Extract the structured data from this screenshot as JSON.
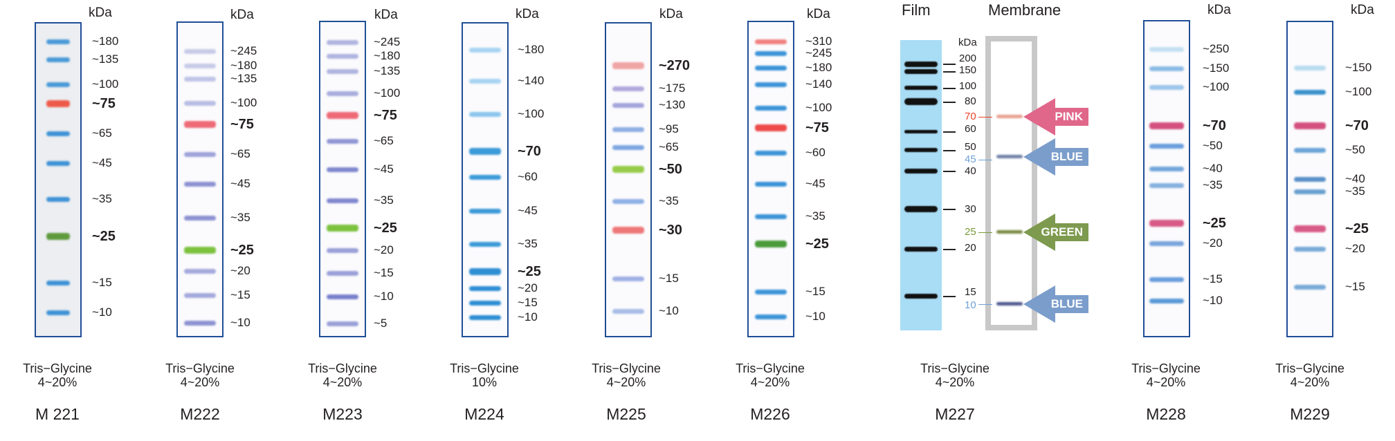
{
  "unit": "kDa",
  "ladders": [
    {
      "name": "M 221",
      "buffer": "Tris−Glycine",
      "percent": "4~20%",
      "bands": [
        {
          "label": "~180",
          "color": "#4a9ad8",
          "bold": false
        },
        {
          "label": "~135",
          "color": "#4a9ad8",
          "bold": false
        },
        {
          "label": "~100",
          "color": "#4a9ad8",
          "bold": false
        },
        {
          "label": "~75",
          "color": "#ee5a4a",
          "bold": true
        },
        {
          "label": "~65",
          "color": "#3f92d6",
          "bold": false
        },
        {
          "label": "~45",
          "color": "#3f92d6",
          "bold": false
        },
        {
          "label": "~35",
          "color": "#3f92d6",
          "bold": false
        },
        {
          "label": "~25",
          "color": "#5f9a3e",
          "bold": true
        },
        {
          "label": "~15",
          "color": "#3f92d6",
          "bold": false
        },
        {
          "label": "~10",
          "color": "#3f92d6",
          "bold": false
        }
      ]
    },
    {
      "name": "M222",
      "buffer": "Tris−Glycine",
      "percent": "4~20%",
      "bands": [
        {
          "label": "~245",
          "color": "#c8cbe8",
          "bold": false
        },
        {
          "label": "~180",
          "color": "#c8cbe8",
          "bold": false
        },
        {
          "label": "~135",
          "color": "#c0c4e6",
          "bold": false
        },
        {
          "label": "~100",
          "color": "#b8bde4",
          "bold": false
        },
        {
          "label": "~75",
          "color": "#ee6a76",
          "bold": true
        },
        {
          "label": "~65",
          "color": "#9ea3da",
          "bold": false
        },
        {
          "label": "~45",
          "color": "#8d92d2",
          "bold": false
        },
        {
          "label": "~35",
          "color": "#8d92d2",
          "bold": false
        },
        {
          "label": "~25",
          "color": "#7cc23e",
          "bold": true
        },
        {
          "label": "~20",
          "color": "#a4a9dc",
          "bold": false
        },
        {
          "label": "~15",
          "color": "#a4a9dc",
          "bold": false
        },
        {
          "label": "~10",
          "color": "#8d92d2",
          "bold": false
        }
      ]
    },
    {
      "name": "M223",
      "buffer": "Tris−Glycine",
      "percent": "4~20%",
      "bands": [
        {
          "label": "~245",
          "color": "#b0b5e0",
          "bold": false
        },
        {
          "label": "~180",
          "color": "#b0b5e0",
          "bold": false
        },
        {
          "label": "~135",
          "color": "#b0b5e0",
          "bold": false
        },
        {
          "label": "~100",
          "color": "#a8addc",
          "bold": false
        },
        {
          "label": "~75",
          "color": "#ee6a76",
          "bold": true
        },
        {
          "label": "~65",
          "color": "#9096d4",
          "bold": false
        },
        {
          "label": "~45",
          "color": "#8088cf",
          "bold": false
        },
        {
          "label": "~35",
          "color": "#8088cf",
          "bold": false
        },
        {
          "label": "~25",
          "color": "#7cc23e",
          "bold": true
        },
        {
          "label": "~20",
          "color": "#9aa0d8",
          "bold": false
        },
        {
          "label": "~15",
          "color": "#9aa0d8",
          "bold": false
        },
        {
          "label": "~10",
          "color": "#7880cc",
          "bold": false
        },
        {
          "label": "~5",
          "color": "#9aa0d8",
          "bold": false
        }
      ]
    },
    {
      "name": "M224",
      "buffer": "Tris−Glycine",
      "percent": "10%",
      "bands": [
        {
          "label": "~180",
          "color": "#a8d4f2",
          "bold": false
        },
        {
          "label": "~140",
          "color": "#a8d4f2",
          "bold": false
        },
        {
          "label": "~100",
          "color": "#8cc6ee",
          "bold": false
        },
        {
          "label": "~70",
          "color": "#3c9ad8",
          "bold": true
        },
        {
          "label": "~60",
          "color": "#3c9ad8",
          "bold": false
        },
        {
          "label": "~45",
          "color": "#3c9ad8",
          "bold": false
        },
        {
          "label": "~35",
          "color": "#3c9ad8",
          "bold": false
        },
        {
          "label": "~25",
          "color": "#2e8ed4",
          "bold": true
        },
        {
          "label": "~20",
          "color": "#2e8ed4",
          "bold": false
        },
        {
          "label": "~15",
          "color": "#2e8ed4",
          "bold": false
        },
        {
          "label": "~10",
          "color": "#2e8ed4",
          "bold": false
        }
      ]
    },
    {
      "name": "M225",
      "buffer": "Tris−Glycine",
      "percent": "4~20%",
      "bands": [
        {
          "label": "~270",
          "color": "#f0a4a4",
          "bold": true
        },
        {
          "label": "~175",
          "color": "#b0a8dc",
          "bold": false
        },
        {
          "label": "~130",
          "color": "#a4a4dc",
          "bold": false
        },
        {
          "label": "~95",
          "color": "#8eaee4",
          "bold": false
        },
        {
          "label": "~65",
          "color": "#7ea6e0",
          "bold": false
        },
        {
          "label": "~50",
          "color": "#96cc4a",
          "bold": true
        },
        {
          "label": "~35",
          "color": "#8eaee4",
          "bold": false
        },
        {
          "label": "~30",
          "color": "#ee7878",
          "bold": true
        },
        {
          "label": "~15",
          "color": "#a0b0e4",
          "bold": false
        },
        {
          "label": "~10",
          "color": "#a8bce6",
          "bold": false
        }
      ]
    },
    {
      "name": "M226",
      "buffer": "Tris−Glycine",
      "percent": "4~20%",
      "bands": [
        {
          "label": "~310",
          "color": "#f08080",
          "bold": false
        },
        {
          "label": "~245",
          "color": "#3c94d8",
          "bold": false
        },
        {
          "label": "~180",
          "color": "#3c94d8",
          "bold": false
        },
        {
          "label": "~140",
          "color": "#3c94d8",
          "bold": false
        },
        {
          "label": "~100",
          "color": "#3c94d8",
          "bold": false
        },
        {
          "label": "~75",
          "color": "#ee4a4a",
          "bold": true
        },
        {
          "label": "~60",
          "color": "#3c94d8",
          "bold": false
        },
        {
          "label": "~45",
          "color": "#3c94d8",
          "bold": false
        },
        {
          "label": "~35",
          "color": "#3c94d8",
          "bold": false
        },
        {
          "label": "~25",
          "color": "#4a9a3a",
          "bold": true
        },
        {
          "label": "~15",
          "color": "#3c94d8",
          "bold": false
        },
        {
          "label": "~10",
          "color": "#3c94d8",
          "bold": false
        }
      ]
    },
    {
      "name": "M228",
      "buffer": "Tris−Glycine",
      "percent": "4~20%",
      "bands": [
        {
          "label": "~250",
          "color": "#c4e0f2",
          "bold": false
        },
        {
          "label": "~150",
          "color": "#8cbce6",
          "bold": false
        },
        {
          "label": "~100",
          "color": "#9cc6ea",
          "bold": false
        },
        {
          "label": "~70",
          "color": "#d4507e",
          "bold": true
        },
        {
          "label": "~50",
          "color": "#6a9edc",
          "bold": false
        },
        {
          "label": "~40",
          "color": "#76a6dc",
          "bold": false
        },
        {
          "label": "~35",
          "color": "#86b0e0",
          "bold": false
        },
        {
          "label": "~25",
          "color": "#d85a86",
          "bold": true
        },
        {
          "label": "~20",
          "color": "#7aa4dc",
          "bold": false
        },
        {
          "label": "~15",
          "color": "#6a9edc",
          "bold": false
        },
        {
          "label": "~10",
          "color": "#5a9ad8",
          "bold": false
        }
      ]
    },
    {
      "name": "M229",
      "buffer": "Tris−Glycine",
      "percent": "4~20%",
      "bands": [
        {
          "label": "~150",
          "color": "#b8dcf0",
          "bold": false
        },
        {
          "label": "~100",
          "color": "#3a92cc",
          "bold": false
        },
        {
          "label": "~70",
          "color": "#d4507e",
          "bold": true
        },
        {
          "label": "~50",
          "color": "#6aa4d8",
          "bold": false
        },
        {
          "label": "~40",
          "color": "#5a90c8",
          "bold": false
        },
        {
          "label": "~35",
          "color": "#6aa0d0",
          "bold": false
        },
        {
          "label": "~25",
          "color": "#d85a86",
          "bold": true
        },
        {
          "label": "~20",
          "color": "#7aaad8",
          "bold": false
        },
        {
          "label": "~15",
          "color": "#7aaad8",
          "bold": false
        }
      ]
    }
  ],
  "m227": {
    "name": "M227",
    "buffer": "Tris−Glycine",
    "percent": "4~20%",
    "film_title": "Film",
    "membrane_title": "Membrane",
    "unit": "kDa",
    "markers": [
      {
        "label": "200",
        "color": "#231f20"
      },
      {
        "label": "150",
        "color": "#231f20"
      },
      {
        "label": "100",
        "color": "#231f20"
      },
      {
        "label": "80",
        "color": "#231f20"
      },
      {
        "label": "70",
        "color": "#e8412a"
      },
      {
        "label": "60",
        "color": "#231f20"
      },
      {
        "label": "50",
        "color": "#231f20"
      },
      {
        "label": "45",
        "color": "#6fa0d8"
      },
      {
        "label": "40",
        "color": "#231f20"
      },
      {
        "label": "30",
        "color": "#231f20"
      },
      {
        "label": "25",
        "color": "#7a9a3a"
      },
      {
        "label": "20",
        "color": "#231f20"
      },
      {
        "label": "15",
        "color": "#231f20"
      },
      {
        "label": "10",
        "color": "#6fa0d8"
      }
    ],
    "arrows": [
      {
        "label": "PINK",
        "color": "#e0678a",
        "band_color": "#e8a090"
      },
      {
        "label": "BLUE",
        "color": "#7b9dcb",
        "band_color": "#7080a8"
      },
      {
        "label": "GREEN",
        "color": "#7d9a4e",
        "band_color": "#7a8a40"
      },
      {
        "label": "BLUE",
        "color": "#7b9dcb",
        "band_color": "#505a90"
      }
    ]
  }
}
